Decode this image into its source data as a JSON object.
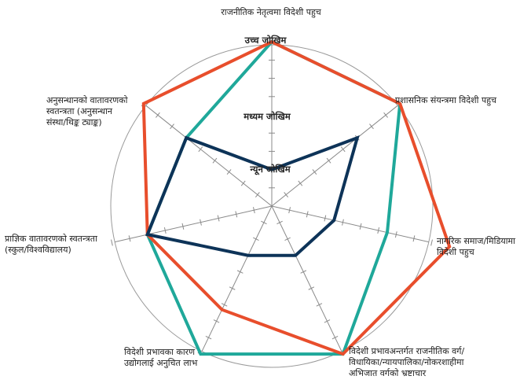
{
  "chart_data": {
    "type": "radar",
    "title": "राजनीतिक नेतृत्वमा विदेशी पहुच",
    "axes": [
      "राजनीतिक नेतृत्वमा विदेशी पहुच",
      "प्रशासनिक संयन्त्रमा विदेशी पहुच",
      "नागरिक समाज/मिडियामा विदेशी पहुच",
      "विदेशी प्रभावअन्तर्गत राजनीतिक वर्ग/ विधायिका/न्यायपालिका/नोकरशाहीमा अभिजात वर्गको भ्रष्टाचार",
      "विदेशी प्रभावका कारण उद्योगलाई अनुचित लाभ",
      "प्राज्ञिक वातावरणको स्वतन्त्रता (स्कुल/विश्वविद्यालय)",
      "अनुसन्धानको वातावरणको स्वतन्त्रता (अनुसन्धान संस्था/थिङ्क ट्याङ्क)"
    ],
    "levels": [
      "न्यून जोखिम",
      "मध्यम जोखिम",
      "उच्च जोखिम"
    ],
    "range": [
      0,
      9
    ],
    "ticks_per_axis": 9,
    "series": [
      {
        "color": "#1fa89a",
        "values": [
          9,
          9,
          6.5,
          9,
          9,
          7,
          6
        ]
      },
      {
        "color": "#e84e2c",
        "values": [
          9,
          9,
          10,
          9,
          6.3,
          7,
          9
        ]
      },
      {
        "color": "#0d3358",
        "values": [
          2,
          6,
          3.5,
          3,
          3,
          7,
          6
        ]
      }
    ]
  },
  "labels": {
    "axis0": "राजनीतिक नेतृत्वमा विदेशी पहुच",
    "axis1": "प्रशासनिक संयन्त्रमा विदेशी पहुच",
    "axis2_line1": "नागरिक समाज/मिडियामा",
    "axis2_line2": "विदेशी पहुच",
    "axis3_line1": "विदेशी प्रभावअन्तर्गत राजनीतिक वर्ग/",
    "axis3_line2": "विधायिका/न्यायपालिका/नोकरशाहीमा",
    "axis3_line3": "अभिजात वर्गको भ्रष्टाचार",
    "axis4_line1": "विदेशी प्रभावका कारण",
    "axis4_line2": "उद्योगलाई अनुचित लाभ",
    "axis5_line1": "प्राज्ञिक वातावरणको स्वतन्त्रता",
    "axis5_line2": "(स्कुल/विश्वविद्यालय)",
    "axis6_line1": "अनुसन्धानको वातावरणको",
    "axis6_line2": "स्वतन्त्रता (अनुसन्धान",
    "axis6_line3": "संस्था/थिङ्क ट्याङ्क)",
    "level_high": "उच्च जोखिम",
    "level_mid": "मध्यम जोखिम",
    "level_low": "न्यून जोखिम"
  }
}
